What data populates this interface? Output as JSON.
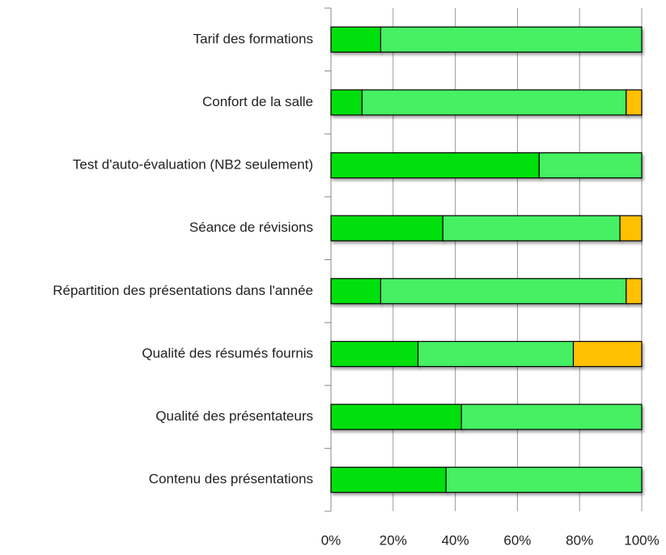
{
  "chart_data": {
    "type": "stacked-barh",
    "categories": [
      "Tarif des formations",
      "Confort de la salle",
      "Test d'auto-évaluation (NB2 seulement)",
      "Séance de révisions",
      "Répartition des présentations dans l'année",
      "Qualité des résumés fournis",
      "Qualité des présentateurs",
      "Contenu des présentations"
    ],
    "series": [
      {
        "color": "#00e010",
        "values": [
          16,
          10,
          67,
          36,
          16,
          28,
          42,
          37
        ]
      },
      {
        "color": "#44f064",
        "values": [
          84,
          85,
          33,
          57,
          79,
          50,
          58,
          63
        ]
      },
      {
        "color": "#ffc000",
        "values": [
          0,
          5,
          0,
          7,
          5,
          22,
          0,
          0
        ]
      }
    ],
    "xlim": [
      0,
      100
    ],
    "xticks": [
      {
        "value": 0,
        "label": "0%"
      },
      {
        "value": 20,
        "label": "20%"
      },
      {
        "value": 40,
        "label": "40%"
      },
      {
        "value": 60,
        "label": "60%"
      },
      {
        "value": 80,
        "label": "80%"
      },
      {
        "value": 100,
        "label": "100%"
      }
    ],
    "grid": true
  }
}
